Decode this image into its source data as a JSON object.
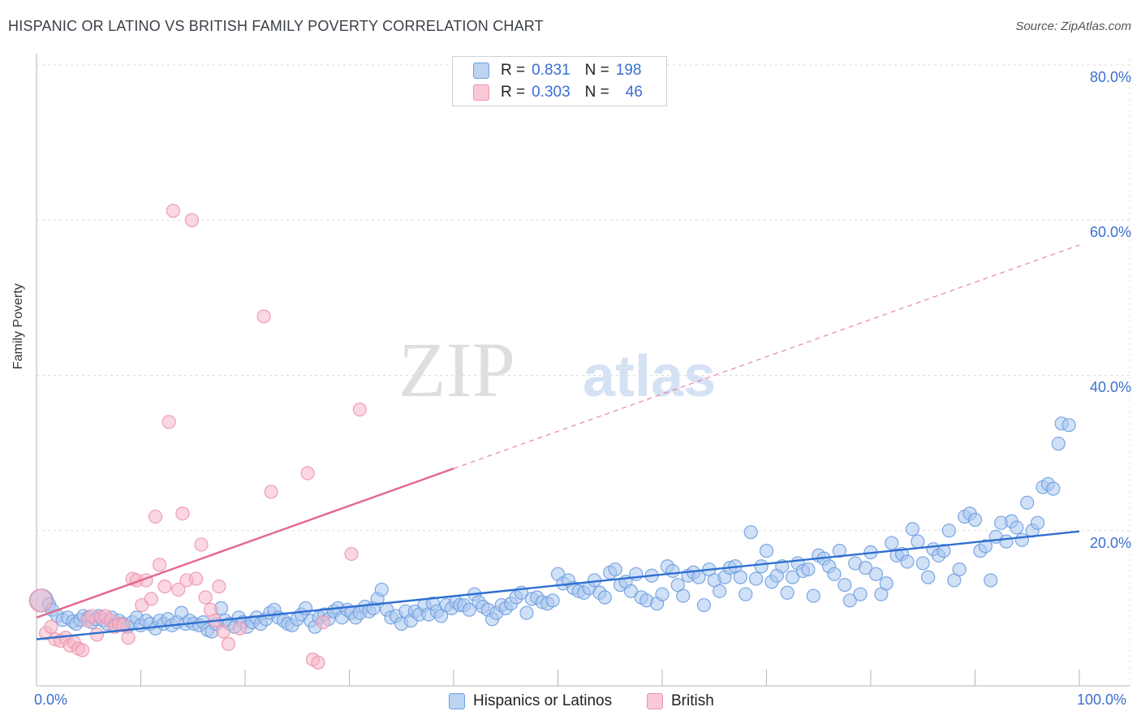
{
  "title": "HISPANIC OR LATINO VS BRITISH FAMILY POVERTY CORRELATION CHART",
  "source": "Source: ZipAtlas.com",
  "watermark": {
    "part1": "ZIP",
    "part2": "atlas"
  },
  "legend": {
    "rows": [
      {
        "r_label": "R =",
        "r_value": "0.831",
        "n_label": "N =",
        "n_value": "198",
        "color": "#a9c6ee"
      },
      {
        "r_label": "R =",
        "r_value": "0.303",
        "n_label": "N =",
        "n_value": "46",
        "color": "#f5b6c9"
      }
    ]
  },
  "chart_data": {
    "type": "scatter",
    "title": "HISPANIC OR LATINO VS BRITISH FAMILY POVERTY CORRELATION CHART",
    "xlabel": "",
    "ylabel": "Family Poverty",
    "xlim": [
      0,
      100
    ],
    "ylim": [
      0,
      80
    ],
    "x_tick_labels": [
      "0.0%",
      "100.0%"
    ],
    "y_tick_labels": [
      "20.0%",
      "40.0%",
      "60.0%",
      "80.0%"
    ],
    "y_ticks": [
      20,
      40,
      60,
      80
    ],
    "series": [
      {
        "name": "Hispanics or Latinos",
        "color": "#6e9fe0",
        "fill": "#a9c6ee",
        "line_color": "#2f6fd0",
        "trend": {
          "x0": 0,
          "y0": 6.0,
          "x1": 100,
          "y1": 19.9
        },
        "points": [
          [
            0.5,
            11.0
          ],
          [
            1.2,
            10.5
          ],
          [
            1.5,
            9.8
          ],
          [
            2.0,
            9.0
          ],
          [
            2.5,
            8.5
          ],
          [
            3.0,
            8.8
          ],
          [
            3.5,
            8.3
          ],
          [
            3.8,
            8.0
          ],
          [
            4.2,
            8.5
          ],
          [
            4.5,
            9.0
          ],
          [
            5.0,
            8.8
          ],
          [
            5.3,
            8.2
          ],
          [
            5.7,
            8.6
          ],
          [
            6.0,
            9.0
          ],
          [
            6.4,
            8.4
          ],
          [
            6.8,
            8.0
          ],
          [
            7.2,
            8.8
          ],
          [
            7.5,
            7.8
          ],
          [
            7.9,
            8.4
          ],
          [
            8.3,
            8.0
          ],
          [
            8.7,
            7.6
          ],
          [
            9.2,
            8.2
          ],
          [
            9.6,
            8.8
          ],
          [
            10.0,
            7.8
          ],
          [
            10.5,
            8.4
          ],
          [
            10.9,
            8.0
          ],
          [
            11.4,
            7.4
          ],
          [
            11.8,
            8.4
          ],
          [
            12.2,
            8.0
          ],
          [
            12.6,
            8.6
          ],
          [
            13.0,
            7.8
          ],
          [
            13.5,
            8.2
          ],
          [
            13.9,
            9.4
          ],
          [
            14.3,
            8.0
          ],
          [
            14.7,
            8.4
          ],
          [
            15.1,
            8.0
          ],
          [
            15.6,
            7.8
          ],
          [
            16.0,
            8.2
          ],
          [
            16.4,
            7.2
          ],
          [
            16.8,
            7.0
          ],
          [
            17.2,
            8.0
          ],
          [
            17.7,
            10.0
          ],
          [
            18.1,
            8.4
          ],
          [
            18.5,
            8.0
          ],
          [
            19.0,
            7.6
          ],
          [
            19.4,
            8.8
          ],
          [
            19.8,
            8.2
          ],
          [
            20.2,
            7.6
          ],
          [
            20.7,
            8.2
          ],
          [
            21.1,
            8.8
          ],
          [
            21.5,
            8.0
          ],
          [
            22.0,
            8.6
          ],
          [
            22.4,
            9.4
          ],
          [
            22.8,
            9.8
          ],
          [
            23.2,
            8.8
          ],
          [
            23.7,
            8.4
          ],
          [
            24.1,
            8.0
          ],
          [
            24.5,
            7.8
          ],
          [
            25.0,
            8.6
          ],
          [
            25.4,
            9.2
          ],
          [
            25.8,
            10.0
          ],
          [
            26.3,
            8.4
          ],
          [
            26.7,
            7.6
          ],
          [
            27.1,
            8.8
          ],
          [
            27.6,
            9.2
          ],
          [
            28.0,
            8.6
          ],
          [
            28.5,
            9.6
          ],
          [
            28.9,
            10.0
          ],
          [
            29.3,
            8.8
          ],
          [
            29.8,
            9.8
          ],
          [
            30.2,
            9.4
          ],
          [
            30.6,
            8.8
          ],
          [
            31.0,
            9.4
          ],
          [
            31.5,
            10.2
          ],
          [
            31.9,
            9.6
          ],
          [
            32.3,
            10.0
          ],
          [
            32.7,
            11.2
          ],
          [
            33.1,
            12.4
          ],
          [
            33.6,
            9.8
          ],
          [
            34.0,
            8.8
          ],
          [
            34.5,
            9.0
          ],
          [
            35.0,
            8.0
          ],
          [
            35.4,
            9.6
          ],
          [
            35.9,
            8.4
          ],
          [
            36.3,
            9.6
          ],
          [
            36.7,
            9.2
          ],
          [
            37.2,
            10.4
          ],
          [
            37.6,
            9.2
          ],
          [
            38.0,
            10.6
          ],
          [
            38.4,
            9.6
          ],
          [
            38.8,
            9.0
          ],
          [
            39.3,
            10.4
          ],
          [
            39.8,
            10.0
          ],
          [
            40.2,
            10.8
          ],
          [
            40.6,
            10.4
          ],
          [
            41.0,
            10.4
          ],
          [
            41.5,
            9.8
          ],
          [
            42.0,
            11.8
          ],
          [
            42.4,
            10.8
          ],
          [
            42.8,
            10.2
          ],
          [
            43.3,
            9.8
          ],
          [
            43.7,
            8.6
          ],
          [
            44.1,
            9.4
          ],
          [
            44.6,
            10.4
          ],
          [
            45.0,
            10.0
          ],
          [
            45.5,
            10.6
          ],
          [
            46.0,
            11.4
          ],
          [
            46.5,
            12.0
          ],
          [
            47.0,
            9.4
          ],
          [
            47.5,
            11.2
          ],
          [
            48.0,
            11.4
          ],
          [
            48.5,
            10.8
          ],
          [
            49.0,
            10.6
          ],
          [
            49.5,
            11.0
          ],
          [
            50.0,
            14.4
          ],
          [
            50.5,
            13.2
          ],
          [
            51.0,
            13.6
          ],
          [
            51.5,
            12.6
          ],
          [
            52.0,
            12.2
          ],
          [
            52.5,
            12.0
          ],
          [
            53.0,
            12.6
          ],
          [
            53.5,
            13.6
          ],
          [
            54.0,
            12.0
          ],
          [
            54.5,
            11.4
          ],
          [
            55.0,
            14.6
          ],
          [
            55.5,
            15.0
          ],
          [
            56.0,
            13.0
          ],
          [
            56.5,
            13.4
          ],
          [
            57.0,
            12.2
          ],
          [
            57.5,
            14.4
          ],
          [
            58.0,
            11.4
          ],
          [
            58.5,
            11.0
          ],
          [
            59.0,
            14.2
          ],
          [
            59.5,
            10.6
          ],
          [
            60.0,
            11.8
          ],
          [
            60.5,
            15.4
          ],
          [
            61.0,
            14.8
          ],
          [
            61.5,
            13.0
          ],
          [
            62.0,
            11.6
          ],
          [
            62.5,
            14.2
          ],
          [
            63.0,
            14.6
          ],
          [
            63.5,
            14.0
          ],
          [
            64.0,
            10.4
          ],
          [
            64.5,
            15.0
          ],
          [
            65.0,
            13.6
          ],
          [
            65.5,
            12.2
          ],
          [
            66.0,
            14.0
          ],
          [
            66.5,
            15.2
          ],
          [
            67.0,
            15.4
          ],
          [
            67.5,
            14.0
          ],
          [
            68.0,
            11.8
          ],
          [
            68.5,
            19.8
          ],
          [
            69.0,
            13.8
          ],
          [
            69.5,
            15.4
          ],
          [
            70.0,
            17.4
          ],
          [
            70.5,
            13.4
          ],
          [
            71.0,
            14.2
          ],
          [
            71.5,
            15.4
          ],
          [
            72.0,
            12.0
          ],
          [
            72.5,
            14.0
          ],
          [
            73.0,
            15.8
          ],
          [
            73.5,
            14.8
          ],
          [
            74.0,
            15.0
          ],
          [
            74.5,
            11.6
          ],
          [
            75.0,
            16.8
          ],
          [
            75.5,
            16.4
          ],
          [
            76.0,
            15.4
          ],
          [
            76.5,
            14.4
          ],
          [
            77.0,
            17.4
          ],
          [
            77.5,
            13.0
          ],
          [
            78.0,
            11.0
          ],
          [
            78.5,
            15.8
          ],
          [
            79.0,
            11.8
          ],
          [
            79.5,
            15.2
          ],
          [
            80.0,
            17.2
          ],
          [
            80.5,
            14.4
          ],
          [
            81.0,
            11.8
          ],
          [
            81.5,
            13.2
          ],
          [
            82.0,
            18.4
          ],
          [
            82.5,
            16.8
          ],
          [
            83.0,
            17.0
          ],
          [
            83.5,
            16.0
          ],
          [
            84.0,
            20.2
          ],
          [
            84.5,
            18.6
          ],
          [
            85.0,
            15.8
          ],
          [
            85.5,
            14.0
          ],
          [
            86.0,
            17.6
          ],
          [
            86.5,
            16.8
          ],
          [
            87.0,
            17.4
          ],
          [
            87.5,
            20.0
          ],
          [
            88.0,
            13.6
          ],
          [
            88.5,
            15.0
          ],
          [
            89.0,
            21.8
          ],
          [
            89.5,
            22.2
          ],
          [
            90.0,
            21.4
          ],
          [
            90.5,
            17.4
          ],
          [
            91.0,
            18.0
          ],
          [
            91.5,
            13.6
          ],
          [
            92.0,
            19.2
          ],
          [
            92.5,
            21.0
          ],
          [
            93.0,
            18.6
          ],
          [
            93.5,
            21.2
          ],
          [
            94.0,
            20.4
          ],
          [
            94.5,
            18.8
          ],
          [
            95.0,
            23.6
          ],
          [
            95.5,
            20.0
          ],
          [
            96.0,
            21.0
          ],
          [
            96.5,
            25.6
          ],
          [
            97.0,
            26.0
          ],
          [
            97.5,
            25.4
          ],
          [
            98.0,
            31.2
          ],
          [
            98.3,
            33.8
          ],
          [
            99.0,
            33.6
          ]
        ]
      },
      {
        "name": "British",
        "color": "#ee93ad",
        "fill": "#f5b6c9",
        "line_color": "#e2678c",
        "trend": {
          "x0": 0,
          "y0": 8.8,
          "x1": 40,
          "y1": 28.0
        },
        "trend_dashed_to": {
          "x": 100,
          "y": 56.8
        },
        "points": [
          [
            0.4,
            11.0
          ],
          [
            0.9,
            6.8
          ],
          [
            1.4,
            7.6
          ],
          [
            1.8,
            6.0
          ],
          [
            2.3,
            5.8
          ],
          [
            2.8,
            6.2
          ],
          [
            3.2,
            5.2
          ],
          [
            3.6,
            5.6
          ],
          [
            4.0,
            4.8
          ],
          [
            4.4,
            4.6
          ],
          [
            4.9,
            8.4
          ],
          [
            5.3,
            9.0
          ],
          [
            5.8,
            6.6
          ],
          [
            6.2,
            8.8
          ],
          [
            6.6,
            9.0
          ],
          [
            7.1,
            8.4
          ],
          [
            7.5,
            7.6
          ],
          [
            7.9,
            8.0
          ],
          [
            8.3,
            7.8
          ],
          [
            8.8,
            6.2
          ],
          [
            9.2,
            13.8
          ],
          [
            9.6,
            13.6
          ],
          [
            10.1,
            10.4
          ],
          [
            10.5,
            13.6
          ],
          [
            11.0,
            11.2
          ],
          [
            11.4,
            21.8
          ],
          [
            11.8,
            15.6
          ],
          [
            12.3,
            12.8
          ],
          [
            12.7,
            34.0
          ],
          [
            13.1,
            61.2
          ],
          [
            13.6,
            12.4
          ],
          [
            14.0,
            22.2
          ],
          [
            14.4,
            13.6
          ],
          [
            14.9,
            60.0
          ],
          [
            15.3,
            13.8
          ],
          [
            15.8,
            18.2
          ],
          [
            16.2,
            11.4
          ],
          [
            16.7,
            9.8
          ],
          [
            17.1,
            8.4
          ],
          [
            17.5,
            12.8
          ],
          [
            17.9,
            7.0
          ],
          [
            18.4,
            5.4
          ],
          [
            19.5,
            7.4
          ],
          [
            21.8,
            47.6
          ],
          [
            22.5,
            25.0
          ],
          [
            26.0,
            27.4
          ],
          [
            26.5,
            3.4
          ],
          [
            27.0,
            3.0
          ],
          [
            27.5,
            8.2
          ],
          [
            30.2,
            17.0
          ],
          [
            31.0,
            35.6
          ]
        ]
      }
    ]
  },
  "bottom_legend": {
    "items": [
      {
        "label": "Hispanics or Latinos",
        "color": "#a9c6ee"
      },
      {
        "label": "British",
        "color": "#f5b6c9"
      }
    ]
  }
}
